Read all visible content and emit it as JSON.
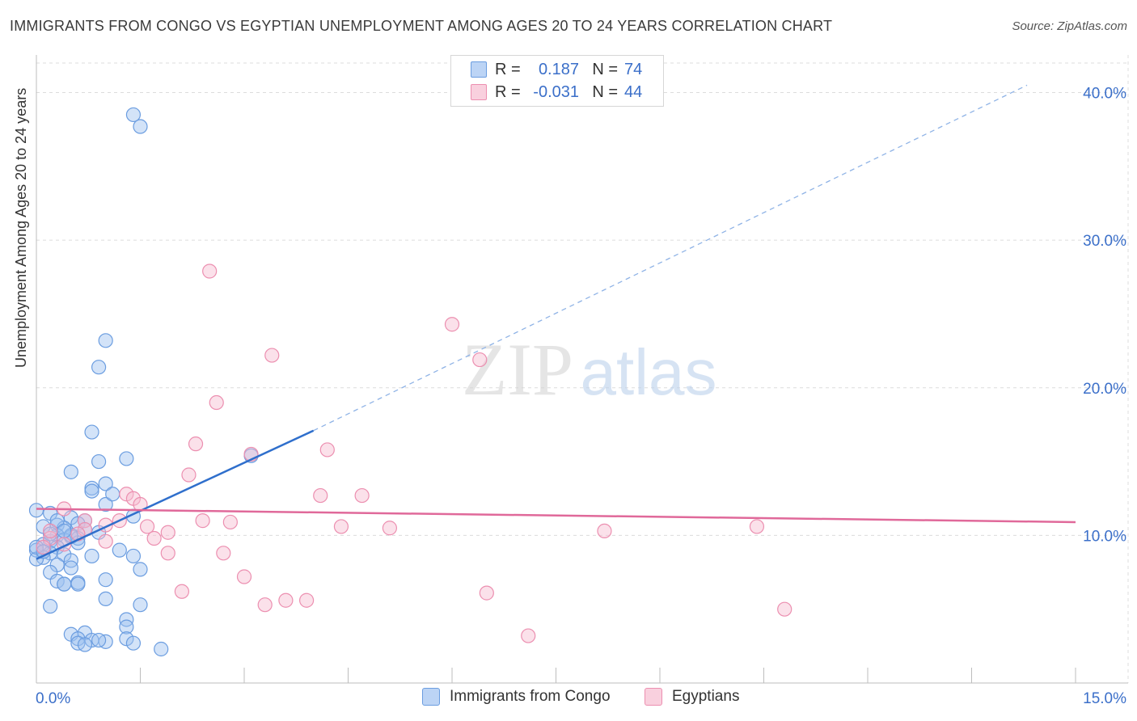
{
  "chart_data": {
    "type": "scatter",
    "title": "IMMIGRANTS FROM CONGO VS EGYPTIAN UNEMPLOYMENT AMONG AGES 20 TO 24 YEARS CORRELATION CHART",
    "source": "Source: ZipAtlas.com",
    "xlabel": "",
    "ylabel": "Unemployment Among Ages 20 to 24 years",
    "xlim": [
      0,
      15
    ],
    "ylim": [
      0,
      42
    ],
    "x_tick_labels": [
      "0.0%",
      "15.0%"
    ],
    "y_ticks": [
      10,
      20,
      30,
      40
    ],
    "y_tick_labels": [
      "10.0%",
      "20.0%",
      "30.0%",
      "40.0%"
    ],
    "grid": true,
    "watermark": {
      "part1": "ZIP",
      "part2": "atlas"
    },
    "legend_top": {
      "rows": [
        {
          "r_label": "R =",
          "r_value": "0.187",
          "n_label": "N =",
          "n_value": "74"
        },
        {
          "r_label": "R =",
          "r_value": "-0.031",
          "n_label": "N =",
          "n_value": "44"
        }
      ]
    },
    "series": [
      {
        "name": "Immigrants from Congo",
        "color": "#9ec2f0",
        "edge": "#6b9de0",
        "trend_color": "#2f6fcc",
        "trend": {
          "x0": 0,
          "y0": 8.4,
          "x1": 4.0,
          "y1": 17.1,
          "dash_to_x": 14.3,
          "dash_to_y": 40.5
        },
        "points": [
          [
            1.4,
            38.5
          ],
          [
            1.5,
            37.7
          ],
          [
            1.0,
            23.2
          ],
          [
            0.9,
            21.4
          ],
          [
            0.8,
            17.0
          ],
          [
            1.3,
            15.2
          ],
          [
            0.9,
            15.0
          ],
          [
            0.5,
            14.3
          ],
          [
            1.0,
            13.5
          ],
          [
            0.8,
            13.2
          ],
          [
            0.8,
            13.0
          ],
          [
            1.0,
            12.1
          ],
          [
            0.2,
            11.5
          ],
          [
            0.0,
            11.7
          ],
          [
            0.5,
            11.2
          ],
          [
            1.4,
            11.3
          ],
          [
            0.7,
            11.0
          ],
          [
            0.6,
            10.8
          ],
          [
            0.3,
            10.7
          ],
          [
            0.4,
            10.5
          ],
          [
            0.1,
            10.6
          ],
          [
            0.7,
            10.4
          ],
          [
            0.9,
            10.2
          ],
          [
            0.3,
            10.0
          ],
          [
            0.5,
            9.9
          ],
          [
            0.4,
            9.7
          ],
          [
            0.6,
            9.8
          ],
          [
            0.2,
            9.6
          ],
          [
            0.1,
            9.4
          ],
          [
            0.3,
            9.2
          ],
          [
            0.0,
            9.0
          ],
          [
            0.2,
            8.8
          ],
          [
            0.4,
            8.7
          ],
          [
            0.1,
            8.5
          ],
          [
            0.0,
            8.4
          ],
          [
            0.8,
            8.6
          ],
          [
            0.5,
            8.3
          ],
          [
            1.2,
            9.0
          ],
          [
            1.4,
            8.6
          ],
          [
            0.3,
            8.0
          ],
          [
            0.5,
            7.8
          ],
          [
            1.5,
            7.7
          ],
          [
            0.2,
            7.5
          ],
          [
            1.0,
            7.0
          ],
          [
            0.3,
            6.9
          ],
          [
            0.6,
            6.8
          ],
          [
            0.6,
            6.7
          ],
          [
            0.4,
            6.7
          ],
          [
            1.0,
            5.7
          ],
          [
            1.5,
            5.3
          ],
          [
            0.2,
            5.2
          ],
          [
            1.3,
            4.3
          ],
          [
            1.3,
            3.8
          ],
          [
            0.5,
            3.3
          ],
          [
            0.7,
            3.4
          ],
          [
            0.6,
            3.0
          ],
          [
            0.8,
            2.9
          ],
          [
            1.0,
            2.8
          ],
          [
            1.3,
            3.0
          ],
          [
            0.6,
            2.7
          ],
          [
            0.7,
            2.6
          ],
          [
            1.4,
            2.7
          ],
          [
            1.8,
            2.3
          ],
          [
            3.1,
            15.4
          ],
          [
            0.9,
            2.9
          ],
          [
            0.4,
            6.7
          ],
          [
            0.2,
            10.1
          ],
          [
            0.6,
            9.5
          ],
          [
            1.1,
            12.8
          ],
          [
            0.3,
            11.0
          ],
          [
            0.5,
            10.0
          ],
          [
            0.4,
            10.3
          ],
          [
            0.0,
            9.2
          ],
          [
            0.1,
            8.9
          ]
        ]
      },
      {
        "name": "Egyptians",
        "color": "#f6bcd0",
        "edge": "#ec8fb0",
        "trend_color": "#e0699a",
        "trend": {
          "x0": 0,
          "y0": 11.8,
          "x1": 15.0,
          "y1": 10.9
        },
        "points": [
          [
            2.5,
            27.9
          ],
          [
            6.0,
            24.3
          ],
          [
            3.4,
            22.2
          ],
          [
            6.4,
            21.9
          ],
          [
            2.6,
            19.0
          ],
          [
            2.3,
            16.2
          ],
          [
            4.2,
            15.8
          ],
          [
            3.1,
            15.5
          ],
          [
            2.2,
            14.1
          ],
          [
            4.1,
            12.7
          ],
          [
            4.7,
            12.7
          ],
          [
            1.3,
            12.8
          ],
          [
            1.4,
            12.5
          ],
          [
            1.5,
            12.1
          ],
          [
            0.4,
            11.8
          ],
          [
            1.2,
            11.0
          ],
          [
            2.4,
            11.0
          ],
          [
            0.7,
            11.0
          ],
          [
            2.8,
            10.9
          ],
          [
            1.6,
            10.6
          ],
          [
            4.4,
            10.6
          ],
          [
            5.1,
            10.5
          ],
          [
            10.4,
            10.6
          ],
          [
            8.2,
            10.3
          ],
          [
            1.9,
            10.2
          ],
          [
            1.0,
            10.7
          ],
          [
            0.7,
            10.4
          ],
          [
            1.0,
            9.6
          ],
          [
            0.2,
            9.8
          ],
          [
            0.4,
            9.4
          ],
          [
            1.7,
            9.8
          ],
          [
            0.1,
            9.2
          ],
          [
            1.9,
            8.8
          ],
          [
            2.7,
            8.8
          ],
          [
            3.0,
            7.2
          ],
          [
            2.1,
            6.2
          ],
          [
            6.5,
            6.1
          ],
          [
            3.9,
            5.6
          ],
          [
            3.6,
            5.6
          ],
          [
            3.3,
            5.3
          ],
          [
            10.8,
            5.0
          ],
          [
            7.1,
            3.2
          ],
          [
            0.6,
            10.1
          ],
          [
            0.2,
            10.3
          ]
        ]
      }
    ]
  }
}
